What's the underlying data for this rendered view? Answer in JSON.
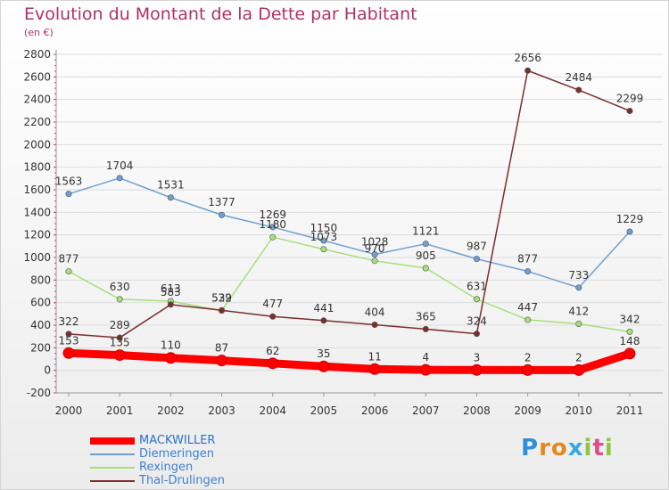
{
  "title": "Evolution du Montant de la Dette par Habitant",
  "unit": "(en €)",
  "logo": "Proxiti",
  "chart_data": {
    "type": "line",
    "title": "Evolution du Montant de la Dette par Habitant",
    "ylabel": "(en €)",
    "xlabel": "",
    "ylim": [
      -200,
      2800
    ],
    "yticks": [
      -200,
      0,
      200,
      400,
      600,
      800,
      1000,
      1200,
      1400,
      1600,
      1800,
      2000,
      2200,
      2400,
      2600,
      2800
    ],
    "categories": [
      "2000",
      "2001",
      "2002",
      "2003",
      "2004",
      "2005",
      "2006",
      "2007",
      "2008",
      "2009",
      "2010",
      "2011"
    ],
    "grid": "horizontal",
    "legend": "bottom-left",
    "series": [
      {
        "name": "MACKWILLER",
        "color": "#ff0000",
        "values": [
          153,
          135,
          110,
          87,
          62,
          35,
          11,
          4,
          3,
          2,
          2,
          148
        ]
      },
      {
        "name": "Diemeringen",
        "color": "#6fa0d0",
        "values": [
          1563,
          1704,
          1531,
          1377,
          1269,
          1150,
          1028,
          1121,
          987,
          877,
          733,
          1229
        ]
      },
      {
        "name": "Rexingen",
        "color": "#a6e07a",
        "values": [
          877,
          630,
          613,
          529,
          1180,
          1073,
          970,
          905,
          631,
          447,
          412,
          342
        ]
      },
      {
        "name": "Thal-Drulingen",
        "color": "#7a2e2e",
        "values": [
          322,
          289,
          583,
          532,
          477,
          441,
          404,
          365,
          324,
          2656,
          2484,
          2299
        ]
      }
    ]
  }
}
